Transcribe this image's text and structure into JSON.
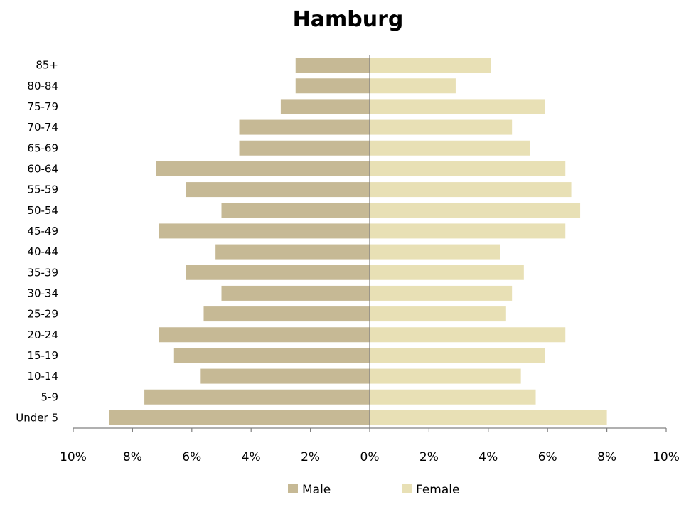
{
  "chart_data": {
    "type": "bar",
    "orientation": "horizontal",
    "title": "Hamburg",
    "categories": [
      "85+",
      "80-84",
      "75-79",
      "70-74",
      "65-69",
      "60-64",
      "55-59",
      "50-54",
      "45-49",
      "40-44",
      "35-39",
      "30-34",
      "25-29",
      "20-24",
      "15-19",
      "10-14",
      "5-9",
      "Under 5"
    ],
    "series": [
      {
        "name": "Male",
        "color": "#c6b995",
        "values": [
          -2.5,
          -2.5,
          -3.0,
          -4.4,
          -4.4,
          -7.2,
          -6.2,
          -5.0,
          -7.1,
          -5.2,
          -6.2,
          -5.0,
          -5.6,
          -7.1,
          -6.6,
          -5.7,
          -7.6,
          -8.8
        ]
      },
      {
        "name": "Female",
        "color": "#e8e0b5",
        "values": [
          4.1,
          2.9,
          5.9,
          4.8,
          5.4,
          6.6,
          6.8,
          7.1,
          6.6,
          4.4,
          5.2,
          4.8,
          4.6,
          6.6,
          5.9,
          5.1,
          5.6,
          8.0
        ]
      }
    ],
    "xlim": [
      -10,
      10
    ],
    "xticks": [
      -10,
      -8,
      -6,
      -4,
      -2,
      0,
      2,
      4,
      6,
      8,
      10
    ],
    "xtick_labels": [
      "10%",
      "8%",
      "6%",
      "4%",
      "2%",
      "0%",
      "2%",
      "4%",
      "6%",
      "8%",
      "10%"
    ],
    "grid": false,
    "legend_position": "bottom",
    "xlabel": "",
    "ylabel": ""
  }
}
